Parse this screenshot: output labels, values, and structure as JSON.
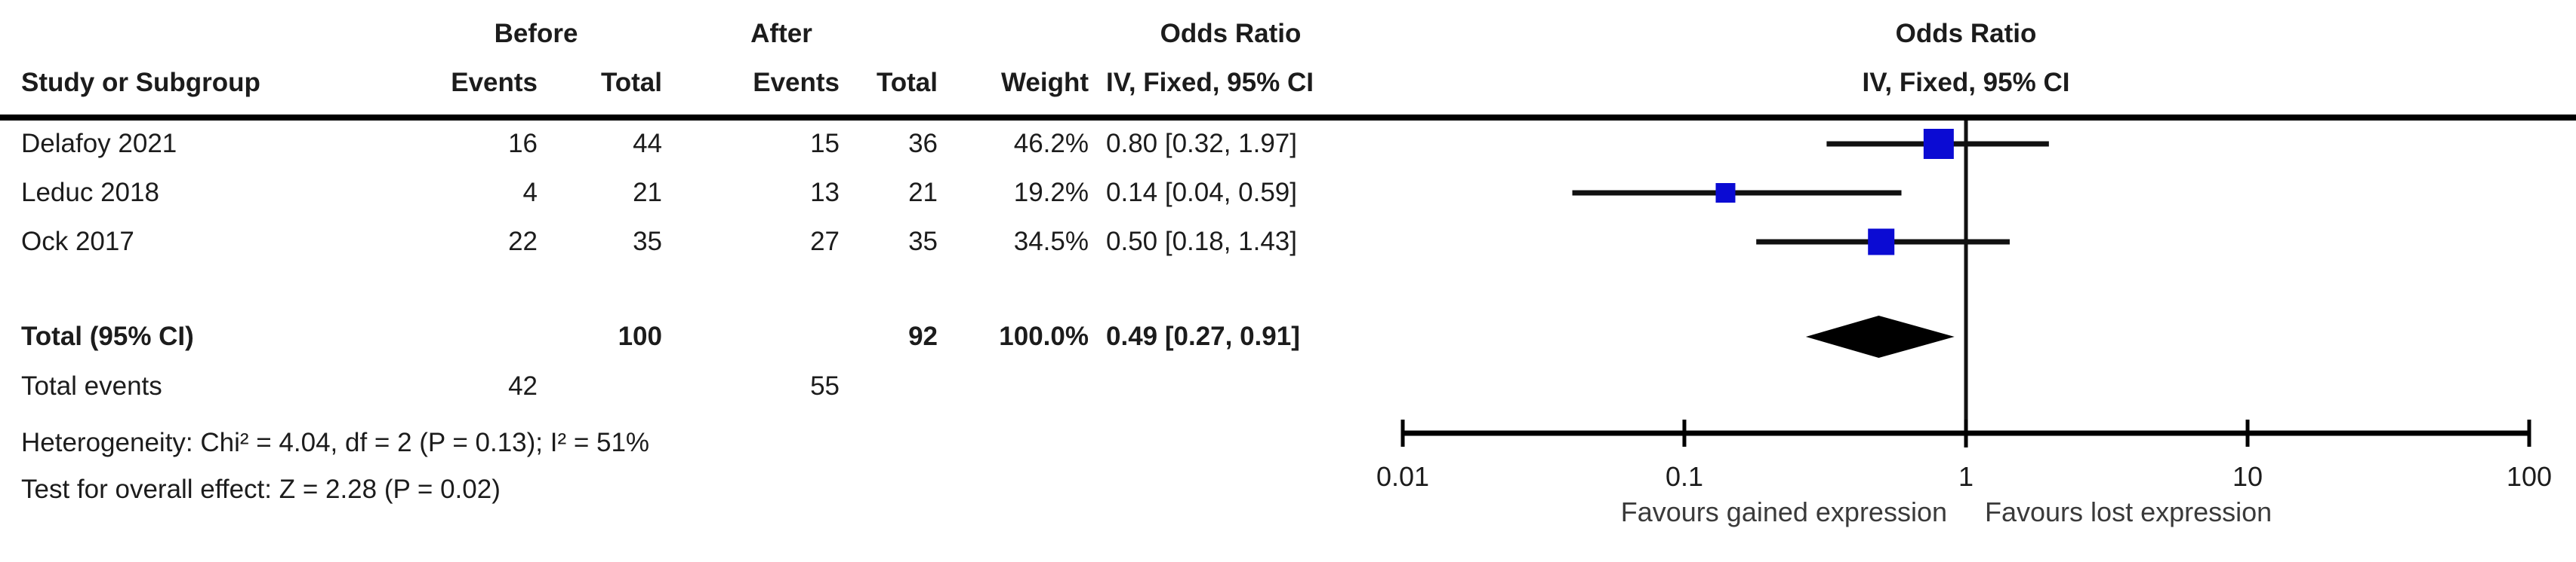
{
  "header": {
    "group_before": "Before",
    "group_after": "After",
    "or_label": "Odds Ratio",
    "col_study": "Study or Subgroup",
    "col_events": "Events",
    "col_total": "Total",
    "col_weight": "Weight",
    "col_method": "IV, Fixed, 95% CI",
    "plot_title": "Odds Ratio",
    "plot_subtitle": "IV, Fixed, 95% CI"
  },
  "rows": [
    {
      "study": "Delafoy 2021",
      "events_before": "16",
      "total_before": "44",
      "events_after": "15",
      "total_after": "36",
      "weight": "46.2%",
      "ci_text": "0.80 [0.32, 1.97]"
    },
    {
      "study": "Leduc 2018",
      "events_before": "4",
      "total_before": "21",
      "events_after": "13",
      "total_after": "21",
      "weight": "19.2%",
      "ci_text": "0.14 [0.04, 0.59]"
    },
    {
      "study": "Ock 2017",
      "events_before": "22",
      "total_before": "35",
      "events_after": "27",
      "total_after": "35",
      "weight": "34.5%",
      "ci_text": "0.50 [0.18, 1.43]"
    }
  ],
  "total_row": {
    "label": "Total (95% CI)",
    "total_before": "100",
    "total_after": "92",
    "weight": "100.0%",
    "ci_text": "0.49 [0.27, 0.91]"
  },
  "total_events_row": {
    "label": "Total events",
    "events_before": "42",
    "events_after": "55"
  },
  "footnotes": {
    "heterogeneity": "Heterogeneity: Chi² = 4.04, df = 2 (P = 0.13); I² = 51%",
    "overall_effect": "Test for overall effect: Z = 2.28 (P = 0.02)"
  },
  "chart_data": {
    "type": "forest",
    "effect_measure": "Odds Ratio",
    "model": "IV, Fixed, 95% CI",
    "x_scale": "log10",
    "axis_range": [
      0.01,
      100
    ],
    "axis_ticks": [
      "0.01",
      "0.1",
      "1",
      "10",
      "100"
    ],
    "null_line": 1,
    "favours_left": "Favours gained expression",
    "favours_right": "Favours lost expression",
    "marker_color": "#0b0bd3",
    "line_color": "#111111",
    "studies": [
      {
        "name": "Delafoy 2021",
        "or": 0.8,
        "ci_low": 0.32,
        "ci_high": 1.97,
        "weight": 46.2
      },
      {
        "name": "Leduc 2018",
        "or": 0.14,
        "ci_low": 0.04,
        "ci_high": 0.59,
        "weight": 19.2
      },
      {
        "name": "Ock 2017",
        "or": 0.5,
        "ci_low": 0.18,
        "ci_high": 1.43,
        "weight": 34.5
      }
    ],
    "total": {
      "or": 0.49,
      "ci_low": 0.27,
      "ci_high": 0.91
    }
  }
}
